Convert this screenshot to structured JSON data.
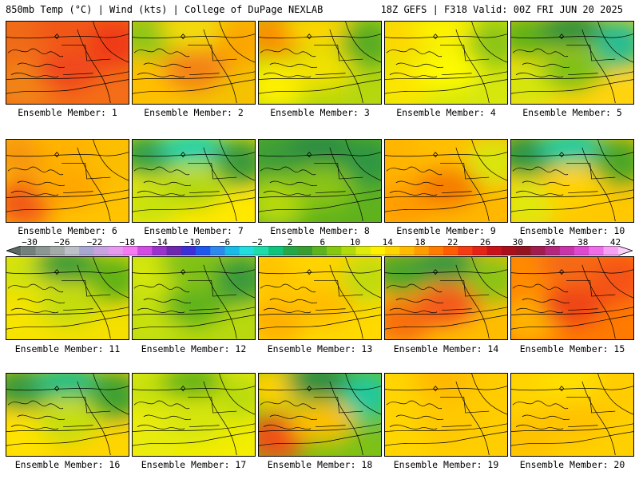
{
  "header": {
    "left": "850mb Temp (°C) | Wind (kts) | College of DuPage NEXLAB",
    "right": "18Z GEFS | F318 Valid: 00Z FRI JUN 20 2025"
  },
  "colorbar": {
    "labels": [
      "−30",
      "−26",
      "−22",
      "−18",
      "−14",
      "−10",
      "−6",
      "−2",
      "2",
      "6",
      "10",
      "14",
      "18",
      "22",
      "26",
      "30",
      "34",
      "38",
      "42"
    ],
    "colors": [
      "#5a6a66",
      "#74807c",
      "#8c9692",
      "#a3aba8",
      "#bcc0c8",
      "#a7a7d1",
      "#c9a2e0",
      "#e79af0",
      "#f77af5",
      "#d24be4",
      "#9933cc",
      "#6e28b0",
      "#3c2fd8",
      "#1f58ee",
      "#2d89ee",
      "#19bbe7",
      "#23dde0",
      "#1fdcaa",
      "#11c47e",
      "#26a848",
      "#3b9c32",
      "#5db41e",
      "#86c80f",
      "#b2da0b",
      "#dceb0b",
      "#fff000",
      "#ffd400",
      "#ffbb00",
      "#ff9d00",
      "#ff7c00",
      "#ff5d00",
      "#f43d12",
      "#e42415",
      "#c9131b",
      "#a9101b",
      "#941520",
      "#a21c50",
      "#b3287c",
      "#c935a8",
      "#df49d0",
      "#ef6ee8",
      "#f7a1f2",
      "#fccdf6"
    ]
  },
  "members": [
    {
      "label": "Ensemble Member: 1",
      "c": [
        "#f06a15",
        "#f15513",
        "#ef3a12",
        "#f18417",
        "#f0461a",
        "#f46d17"
      ]
    },
    {
      "label": "Ensemble Member: 2",
      "c": [
        "#8cc614",
        "#f2dc0a",
        "#fba600",
        "#ffbf00",
        "#f48112",
        "#f4c205"
      ]
    },
    {
      "label": "Ensemble Member: 3",
      "c": [
        "#fb8f02",
        "#ffd500",
        "#59ac23",
        "#fff000",
        "#f2e103",
        "#b5d70c"
      ]
    },
    {
      "label": "Ensemble Member: 4",
      "c": [
        "#ffd700",
        "#fff200",
        "#8cc514",
        "#fde504",
        "#fffa00",
        "#d6e70a"
      ]
    },
    {
      "label": "Ensemble Member: 5",
      "c": [
        "#62b218",
        "#2f8f3d",
        "#2bbc92",
        "#d6e609",
        "#7dc114",
        "#ffd40a"
      ]
    },
    {
      "label": "Ensemble Member: 6",
      "c": [
        "#f79607",
        "#ffb000",
        "#fbbd00",
        "#f15a12",
        "#ffa600",
        "#ffc300"
      ]
    },
    {
      "label": "Ensemble Member: 7",
      "c": [
        "#36a046",
        "#1fd0b0",
        "#3a9a3a",
        "#c9e20c",
        "#b4d80c",
        "#ffe800"
      ]
    },
    {
      "label": "Ensemble Member: 8",
      "c": [
        "#3e9d37",
        "#2a8c45",
        "#2f9642",
        "#b7d90e",
        "#8bc415",
        "#5fb21a"
      ]
    },
    {
      "label": "Ensemble Member: 9",
      "c": [
        "#ffb500",
        "#ffc000",
        "#d9e60b",
        "#ff9d00",
        "#f67c06",
        "#ffb700"
      ]
    },
    {
      "label": "Ensemble Member: 10",
      "c": [
        "#2f9642",
        "#17cba7",
        "#4aa628",
        "#dfe90a",
        "#ffd200",
        "#ffc800"
      ]
    },
    {
      "label": "Ensemble Member: 11",
      "c": [
        "#d0e30a",
        "#3a9a3a",
        "#62b219",
        "#f7e403",
        "#c3dd0b",
        "#f5e001"
      ]
    },
    {
      "label": "Ensemble Member: 12",
      "c": [
        "#d6e709",
        "#7bbf15",
        "#3a9a3a",
        "#c7e10b",
        "#5fb21a",
        "#b8d90d"
      ]
    },
    {
      "label": "Ensemble Member: 13",
      "c": [
        "#ffc300",
        "#ffd300",
        "#bfdb0c",
        "#ffb000",
        "#ffbd00",
        "#ffd900"
      ]
    },
    {
      "label": "Ensemble Member: 14",
      "c": [
        "#4da62b",
        "#2f9642",
        "#8ac414",
        "#f7700f",
        "#f4561b",
        "#ffbd00"
      ]
    },
    {
      "label": "Ensemble Member: 15",
      "c": [
        "#ff8c00",
        "#f46712",
        "#f45316",
        "#ffb400",
        "#ee4515",
        "#ff7a05"
      ]
    },
    {
      "label": "Ensemble Member: 16",
      "c": [
        "#3a9a3a",
        "#1fbd88",
        "#3da033",
        "#ffe300",
        "#c4df0b",
        "#ffd500"
      ]
    },
    {
      "label": "Ensemble Member: 17",
      "c": [
        "#c7e10b",
        "#63b218",
        "#bcdc0c",
        "#e8ec0a",
        "#d5e60a",
        "#f2ed04"
      ]
    },
    {
      "label": "Ensemble Member: 18",
      "c": [
        "#ffd100",
        "#2a8c45",
        "#22c89c",
        "#f04f14",
        "#ffbf00",
        "#7dc114"
      ]
    },
    {
      "label": "Ensemble Member: 19",
      "c": [
        "#ffd500",
        "#ffb800",
        "#ffcc00",
        "#ffd600",
        "#ffc800",
        "#ffce00"
      ]
    },
    {
      "label": "Ensemble Member: 20",
      "c": [
        "#ffd400",
        "#ffe000",
        "#ffcc00",
        "#ffc100",
        "#ffc200",
        "#ffd000"
      ]
    }
  ]
}
